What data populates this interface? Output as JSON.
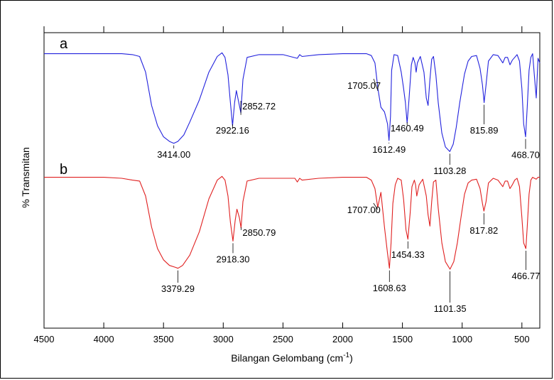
{
  "chart_data": {
    "type": "line",
    "xlabel": "Bilangan Gelombang (cm",
    "xlabel_sup": "-1",
    "xlabel_close": ")",
    "ylabel": "% Transmitan",
    "xlim": [
      4500,
      350
    ],
    "x_ticks": [
      4500,
      4000,
      3500,
      3000,
      2500,
      2000,
      1500,
      1000,
      500
    ],
    "grid": false,
    "colors": {
      "a": "#2222dd",
      "b": "#e02020"
    },
    "series": [
      {
        "name": "a",
        "color": "#2222dd",
        "baseline": 0.02,
        "x": [
          4500,
          4200,
          4000,
          3850,
          3760,
          3700,
          3650,
          3600,
          3550,
          3500,
          3450,
          3414,
          3380,
          3330,
          3280,
          3200,
          3120,
          3050,
          3010,
          2985,
          2960,
          2940,
          2922.16,
          2905,
          2890,
          2870,
          2852.72,
          2835,
          2800,
          2700,
          2500,
          2380,
          2360,
          2340,
          2200,
          2000,
          1800,
          1760,
          1730,
          1705.07,
          1680,
          1650,
          1625,
          1612.49,
          1600,
          1590,
          1570,
          1540,
          1510,
          1490,
          1475,
          1460.49,
          1445,
          1425,
          1410,
          1395,
          1385,
          1375,
          1350,
          1320,
          1300,
          1285,
          1270,
          1255,
          1240,
          1220,
          1200,
          1170,
          1140,
          1103.28,
          1075,
          1050,
          1020,
          980,
          950,
          920,
          880,
          850,
          830,
          815.89,
          800,
          780,
          740,
          700,
          660,
          640,
          620,
          600,
          580,
          560,
          540,
          520,
          500,
          485,
          468.7,
          455,
          440,
          425,
          410,
          395,
          380,
          365,
          350
        ],
        "y": [
          0.02,
          0.02,
          0.02,
          0.02,
          0.03,
          0.05,
          0.22,
          0.58,
          0.8,
          0.92,
          0.97,
          0.99,
          0.97,
          0.9,
          0.76,
          0.52,
          0.22,
          0.05,
          0.01,
          0.06,
          0.25,
          0.55,
          0.8,
          0.55,
          0.42,
          0.55,
          0.66,
          0.3,
          0.06,
          0.03,
          0.03,
          0.07,
          0.03,
          0.05,
          0.03,
          0.02,
          0.02,
          0.04,
          0.12,
          0.4,
          0.6,
          0.65,
          0.78,
          0.96,
          0.7,
          0.2,
          0.03,
          0.04,
          0.22,
          0.4,
          0.55,
          0.77,
          0.52,
          0.14,
          0.06,
          0.12,
          0.22,
          0.12,
          0.05,
          0.22,
          0.5,
          0.58,
          0.3,
          0.08,
          0.05,
          0.25,
          0.55,
          0.88,
          1.03,
          1.08,
          1.0,
          0.82,
          0.55,
          0.24,
          0.1,
          0.05,
          0.04,
          0.18,
          0.36,
          0.55,
          0.36,
          0.1,
          0.03,
          0.04,
          0.12,
          0.06,
          0.06,
          0.14,
          0.09,
          0.06,
          0.03,
          0.1,
          0.4,
          0.78,
          0.92,
          0.6,
          0.2,
          0.06,
          0.02,
          0.26,
          0.5,
          0.07,
          0.12
        ],
        "peaks": [
          3414.0,
          2922.16,
          2852.72,
          1705.07,
          1612.49,
          1460.49,
          1103.28,
          815.89,
          468.7
        ],
        "peak_labels": [
          "3414.00",
          "2922.16",
          "2852.72",
          "1705.07",
          "1612.49",
          "1460.49",
          "1103.28",
          "815.89",
          "468.70"
        ]
      },
      {
        "name": "b",
        "color": "#e02020",
        "baseline": 0.02,
        "x": [
          4500,
          4200,
          4000,
          3850,
          3760,
          3700,
          3650,
          3600,
          3550,
          3500,
          3450,
          3400,
          3379.29,
          3340,
          3280,
          3200,
          3120,
          3050,
          3010,
          2985,
          2960,
          2940,
          2918.3,
          2900,
          2885,
          2865,
          2850.79,
          2835,
          2800,
          2700,
          2500,
          2400,
          2380,
          2360,
          2340,
          2200,
          2000,
          1800,
          1760,
          1730,
          1707.0,
          1680,
          1650,
          1625,
          1608.63,
          1595,
          1580,
          1560,
          1540,
          1510,
          1490,
          1470,
          1454.33,
          1435,
          1420,
          1400,
          1390,
          1380,
          1360,
          1330,
          1300,
          1285,
          1270,
          1255,
          1240,
          1220,
          1200,
          1170,
          1140,
          1101.35,
          1070,
          1040,
          1010,
          980,
          950,
          920,
          880,
          850,
          830,
          817.82,
          800,
          780,
          740,
          700,
          660,
          640,
          620,
          600,
          580,
          560,
          540,
          520,
          500,
          485,
          466.77,
          455,
          440,
          425,
          410,
          395,
          380,
          365,
          350
        ],
        "y": [
          0.02,
          0.02,
          0.02,
          0.03,
          0.05,
          0.06,
          0.22,
          0.55,
          0.78,
          0.9,
          0.96,
          0.98,
          0.99,
          0.96,
          0.85,
          0.6,
          0.25,
          0.05,
          0.01,
          0.05,
          0.22,
          0.5,
          0.7,
          0.48,
          0.36,
          0.45,
          0.56,
          0.28,
          0.06,
          0.03,
          0.03,
          0.03,
          0.07,
          0.03,
          0.05,
          0.03,
          0.02,
          0.02,
          0.05,
          0.14,
          0.34,
          0.18,
          0.55,
          0.83,
          0.99,
          0.72,
          0.3,
          0.1,
          0.03,
          0.05,
          0.26,
          0.58,
          0.68,
          0.4,
          0.12,
          0.05,
          0.1,
          0.22,
          0.1,
          0.04,
          0.22,
          0.42,
          0.54,
          0.28,
          0.07,
          0.05,
          0.35,
          0.72,
          0.92,
          1.0,
          0.92,
          0.72,
          0.45,
          0.2,
          0.08,
          0.05,
          0.04,
          0.14,
          0.3,
          0.38,
          0.28,
          0.08,
          0.03,
          0.05,
          0.12,
          0.06,
          0.06,
          0.14,
          0.1,
          0.05,
          0.03,
          0.12,
          0.45,
          0.72,
          0.78,
          0.55,
          0.2,
          0.05,
          0.02,
          0.03,
          0.04,
          0.02,
          0.02
        ],
        "peaks": [
          3379.29,
          2918.3,
          2850.79,
          1707.0,
          1608.63,
          1454.33,
          1101.35,
          817.82,
          466.77
        ],
        "peak_labels": [
          "3379.29",
          "2918.30",
          "2850.79",
          "1707.00",
          "1608.63",
          "1454.33",
          "1101.35",
          "817.82",
          "466.77"
        ]
      }
    ]
  }
}
